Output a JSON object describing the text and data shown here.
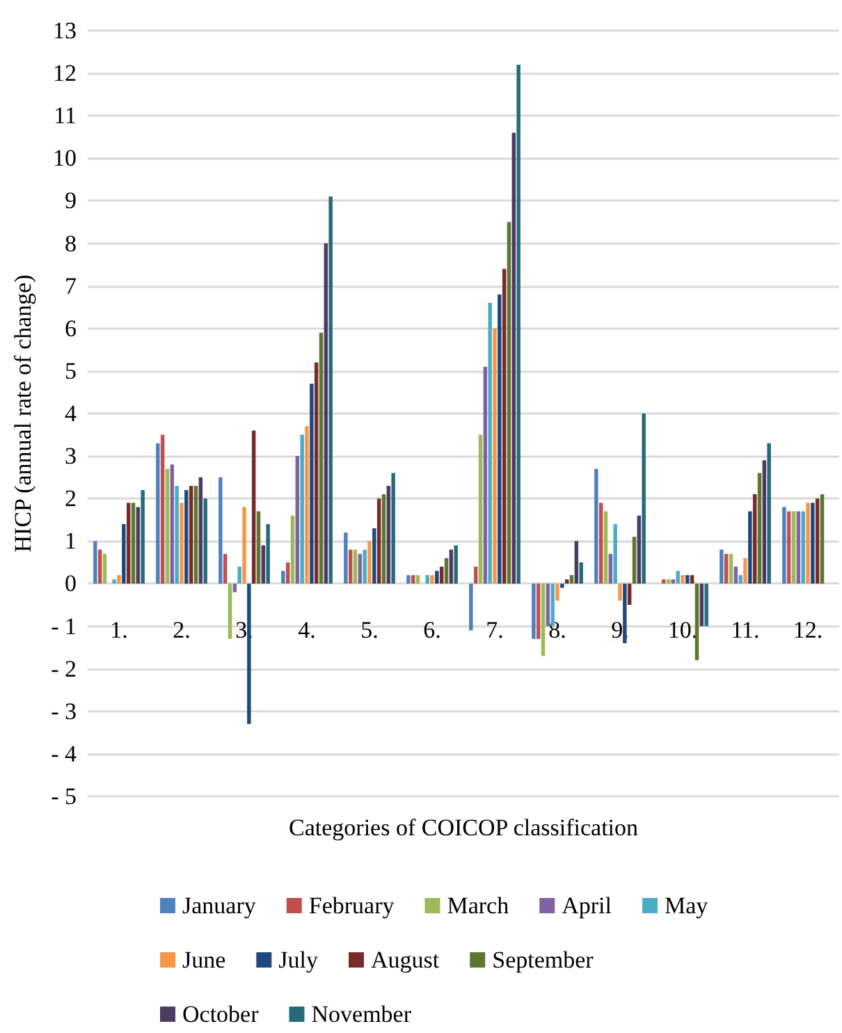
{
  "chart_data": {
    "type": "bar",
    "xlabel": "Categories of COICOP classification",
    "ylabel": "HICP (annual rate of change)",
    "categories": [
      "1.",
      "2.",
      "3.",
      "4.",
      "5.",
      "6.",
      "7.",
      "8.",
      "9.",
      "10.",
      "11.",
      "12."
    ],
    "ylim": [
      -5,
      13
    ],
    "yticks": [
      {
        "value": -5,
        "label": "- 5"
      },
      {
        "value": -4,
        "label": "- 4"
      },
      {
        "value": -3,
        "label": "- 3"
      },
      {
        "value": -2,
        "label": "- 2"
      },
      {
        "value": -1,
        "label": "- 1"
      },
      0,
      1,
      2,
      3,
      4,
      5,
      6,
      7,
      8,
      9,
      10,
      11,
      12,
      13
    ],
    "grid": "y",
    "legend": "bottom",
    "series": [
      {
        "name": "January",
        "color": "#4f81bd",
        "values": [
          1.0,
          3.3,
          2.5,
          0.3,
          1.2,
          0.2,
          -1.1,
          -1.3,
          2.7,
          0,
          0.8,
          1.8
        ]
      },
      {
        "name": "February",
        "color": "#c0504d",
        "values": [
          0.8,
          3.5,
          0.7,
          0.5,
          0.8,
          0.2,
          0.4,
          -1.3,
          1.9,
          0.1,
          0.7,
          1.7
        ]
      },
      {
        "name": "March",
        "color": "#9bbb59",
        "values": [
          0.7,
          2.7,
          -1.3,
          1.6,
          0.8,
          0.2,
          3.5,
          -1.7,
          1.7,
          0.1,
          0.7,
          1.7
        ]
      },
      {
        "name": "April",
        "color": "#8064a2",
        "values": [
          0,
          2.8,
          -0.2,
          3.0,
          0.7,
          0,
          5.1,
          -1.0,
          0.7,
          0.1,
          0.4,
          1.7
        ]
      },
      {
        "name": "May",
        "color": "#4bacc6",
        "values": [
          0.1,
          2.3,
          0.4,
          3.5,
          0.8,
          0.2,
          6.6,
          -1.0,
          1.4,
          0.3,
          0.2,
          1.7
        ]
      },
      {
        "name": "June",
        "color": "#f79646",
        "values": [
          0.2,
          1.9,
          1.8,
          3.7,
          1.0,
          0.2,
          6.0,
          -0.4,
          -0.4,
          0.2,
          0.6,
          1.9
        ]
      },
      {
        "name": "July",
        "color": "#1f497d",
        "values": [
          1.4,
          2.2,
          -3.3,
          4.7,
          1.3,
          0.3,
          6.8,
          -0.1,
          -1.4,
          0.2,
          1.7,
          1.9
        ]
      },
      {
        "name": "August",
        "color": "#772c2a",
        "values": [
          1.9,
          2.3,
          3.6,
          5.2,
          2.0,
          0.4,
          7.4,
          0.1,
          -0.5,
          0.2,
          2.1,
          2.0
        ]
      },
      {
        "name": "September",
        "color": "#5f7530",
        "values": [
          1.9,
          2.3,
          1.7,
          5.9,
          2.1,
          0.6,
          8.5,
          0.2,
          1.1,
          -1.8,
          2.6,
          2.1
        ]
      },
      {
        "name": "October",
        "color": "#4d3b62",
        "values": [
          1.8,
          2.5,
          0.9,
          8.0,
          2.3,
          0.8,
          10.6,
          1.0,
          1.6,
          -1.0,
          2.9,
          null
        ]
      },
      {
        "name": "November",
        "color": "#276a7c",
        "values": [
          2.2,
          2.0,
          1.4,
          9.1,
          2.6,
          0.9,
          12.2,
          0.5,
          4.0,
          -1.0,
          3.3,
          null
        ]
      }
    ]
  }
}
